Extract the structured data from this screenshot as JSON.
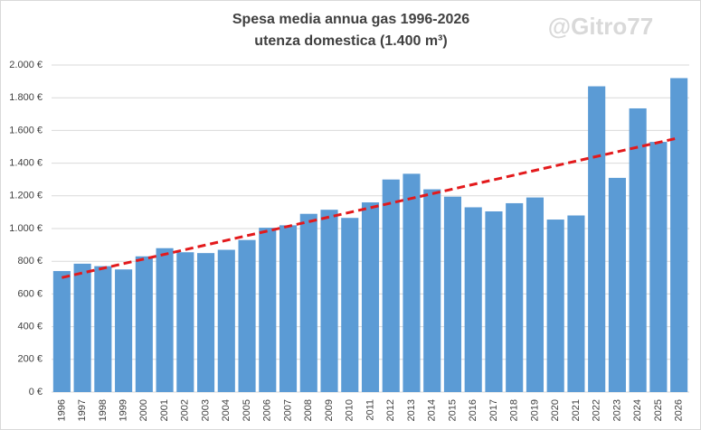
{
  "chart_data": {
    "type": "bar",
    "title": "Spesa media annua gas 1996-2026",
    "subtitle": "utenza domestica (1.400 m³)",
    "watermark": "@Gitro77",
    "categories": [
      "1996",
      "1997",
      "1998",
      "1999",
      "2000",
      "2001",
      "2002",
      "2003",
      "2004",
      "2005",
      "2006",
      "2007",
      "2008",
      "2009",
      "2010",
      "2011",
      "2012",
      "2013",
      "2014",
      "2015",
      "2016",
      "2017",
      "2018",
      "2019",
      "2020",
      "2021",
      "2022",
      "2023",
      "2024",
      "2025",
      "2026"
    ],
    "values": [
      740,
      785,
      770,
      750,
      830,
      880,
      855,
      850,
      870,
      930,
      1005,
      1020,
      1090,
      1115,
      1065,
      1160,
      1300,
      1335,
      1240,
      1195,
      1130,
      1105,
      1155,
      1190,
      1055,
      1080,
      1870,
      1310,
      1735,
      1530,
      1920
    ],
    "color": "#5b9bd5",
    "trend": {
      "color": "#e31a1c",
      "values": [
        700,
        1555
      ]
    },
    "ylim": [
      0,
      2000
    ],
    "yticks": [
      {
        "value": 0,
        "label": "0 €"
      },
      {
        "value": 200,
        "label": "200 €"
      },
      {
        "value": 400,
        "label": "400 €"
      },
      {
        "value": 600,
        "label": "600 €"
      },
      {
        "value": 800,
        "label": "800 €"
      },
      {
        "value": 1000,
        "label": "1.000 €"
      },
      {
        "value": 1200,
        "label": "1.200 €"
      },
      {
        "value": 1400,
        "label": "1.400 €"
      },
      {
        "value": 1600,
        "label": "1.600 €"
      },
      {
        "value": 1800,
        "label": "1.800 €"
      },
      {
        "value": 2000,
        "label": "2.000 €"
      }
    ],
    "grid": true
  }
}
